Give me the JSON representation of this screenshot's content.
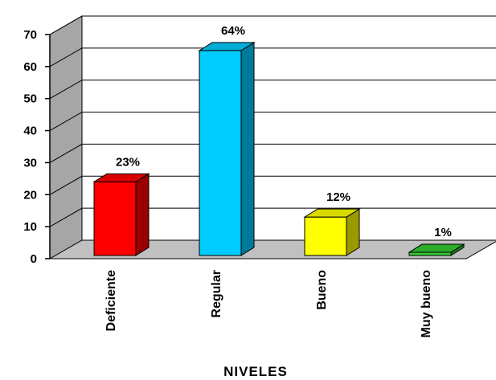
{
  "chart_data": {
    "type": "bar",
    "title": "",
    "xlabel": "NIVELES",
    "ylabel": "",
    "ylim": [
      0,
      70
    ],
    "yticks": [
      0,
      10,
      20,
      30,
      40,
      50,
      60,
      70
    ],
    "grid": true,
    "three_d": true,
    "legend": "none",
    "categories": [
      "Deficiente",
      "Regular",
      "Bueno",
      "Muy bueno"
    ],
    "series": [
      {
        "values": [
          23,
          64,
          12,
          1
        ],
        "labels": [
          "23%",
          "64%",
          "12%",
          "1%"
        ],
        "colors": [
          "#ff0000",
          "#00ccff",
          "#ffff00",
          "#33cc33"
        ]
      }
    ]
  }
}
